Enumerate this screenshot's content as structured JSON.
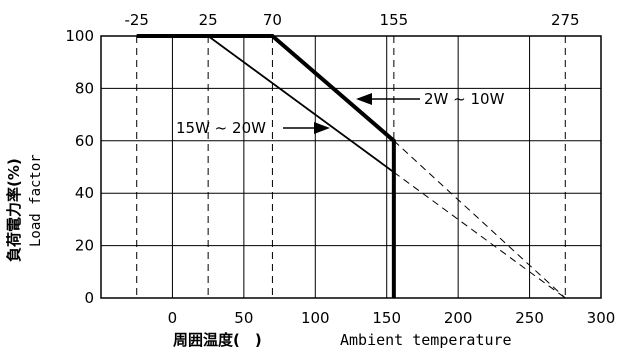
{
  "chart_data": {
    "type": "line",
    "xlim": [
      -50,
      300
    ],
    "ylim": [
      0,
      100
    ],
    "x_ticks": [
      "0",
      "50",
      "100",
      "150",
      "200",
      "250",
      "300"
    ],
    "y_ticks": [
      "0",
      "20",
      "40",
      "60",
      "80",
      "100"
    ],
    "top_ticks": [
      "-25",
      "25",
      "70",
      "155",
      "275"
    ],
    "top_tick_values": [
      -25,
      25,
      70,
      155,
      275
    ],
    "grid": true,
    "xlabel_cjk": "周囲温度(　)",
    "xlabel_en": "Ambient temperature",
    "ylabel_cjk": "負荷電力率(%)",
    "ylabel_en": "Load factor",
    "series": [
      {
        "name": "2W ~ 10W",
        "x": [
          -25,
          70,
          155,
          155
        ],
        "y": [
          100,
          100,
          60,
          0
        ],
        "extension": {
          "x": [
            155,
            275
          ],
          "y": [
            60,
            0
          ]
        }
      },
      {
        "name": "15W ~ 20W",
        "x": [
          -25,
          25,
          155
        ],
        "y": [
          100,
          100,
          48
        ],
        "extension": {
          "x": [
            155,
            275
          ],
          "y": [
            48,
            0
          ]
        }
      }
    ],
    "annotations": [
      "2W ~ 10W",
      "15W ~ 20W"
    ]
  }
}
